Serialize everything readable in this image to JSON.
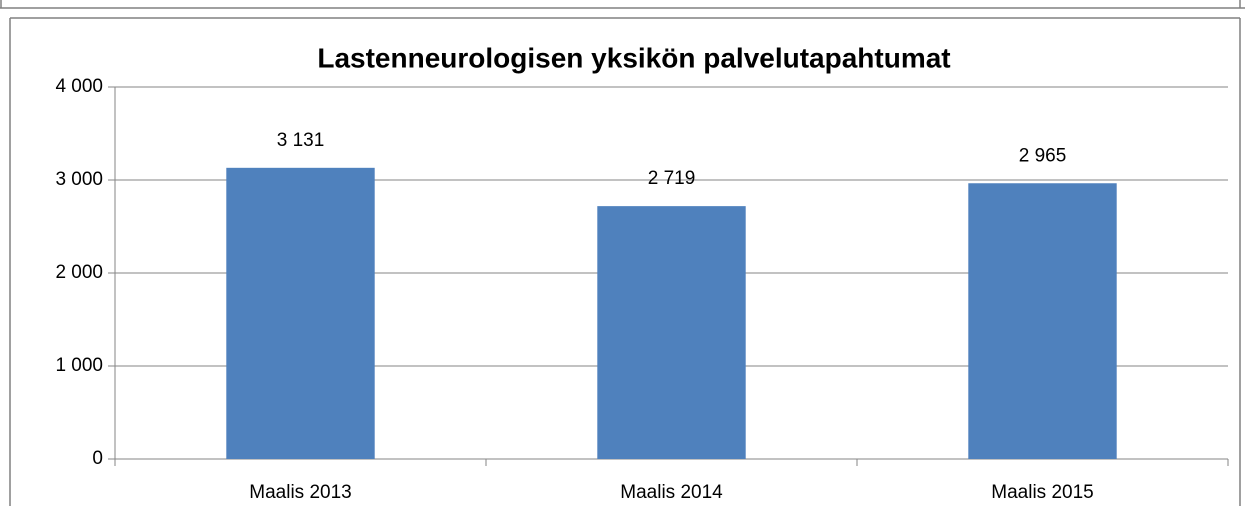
{
  "chart_data": {
    "type": "bar",
    "title": "Lastenneurologisen yksikön palvelutapahtumat",
    "categories": [
      "Maalis 2013",
      "Maalis 2014",
      "Maalis 2015"
    ],
    "values": [
      3131,
      2719,
      2965
    ],
    "value_labels": [
      "3 131",
      "2 719",
      "2 965"
    ],
    "color": "#4f81bd",
    "ylim": [
      0,
      4000
    ],
    "yticks": [
      {
        "value": 0,
        "label": "0"
      },
      {
        "value": 1000,
        "label": "1 000"
      },
      {
        "value": 2000,
        "label": "2 000"
      },
      {
        "value": 3000,
        "label": "3 000"
      },
      {
        "value": 4000,
        "label": "4 000"
      }
    ],
    "grid": true
  }
}
